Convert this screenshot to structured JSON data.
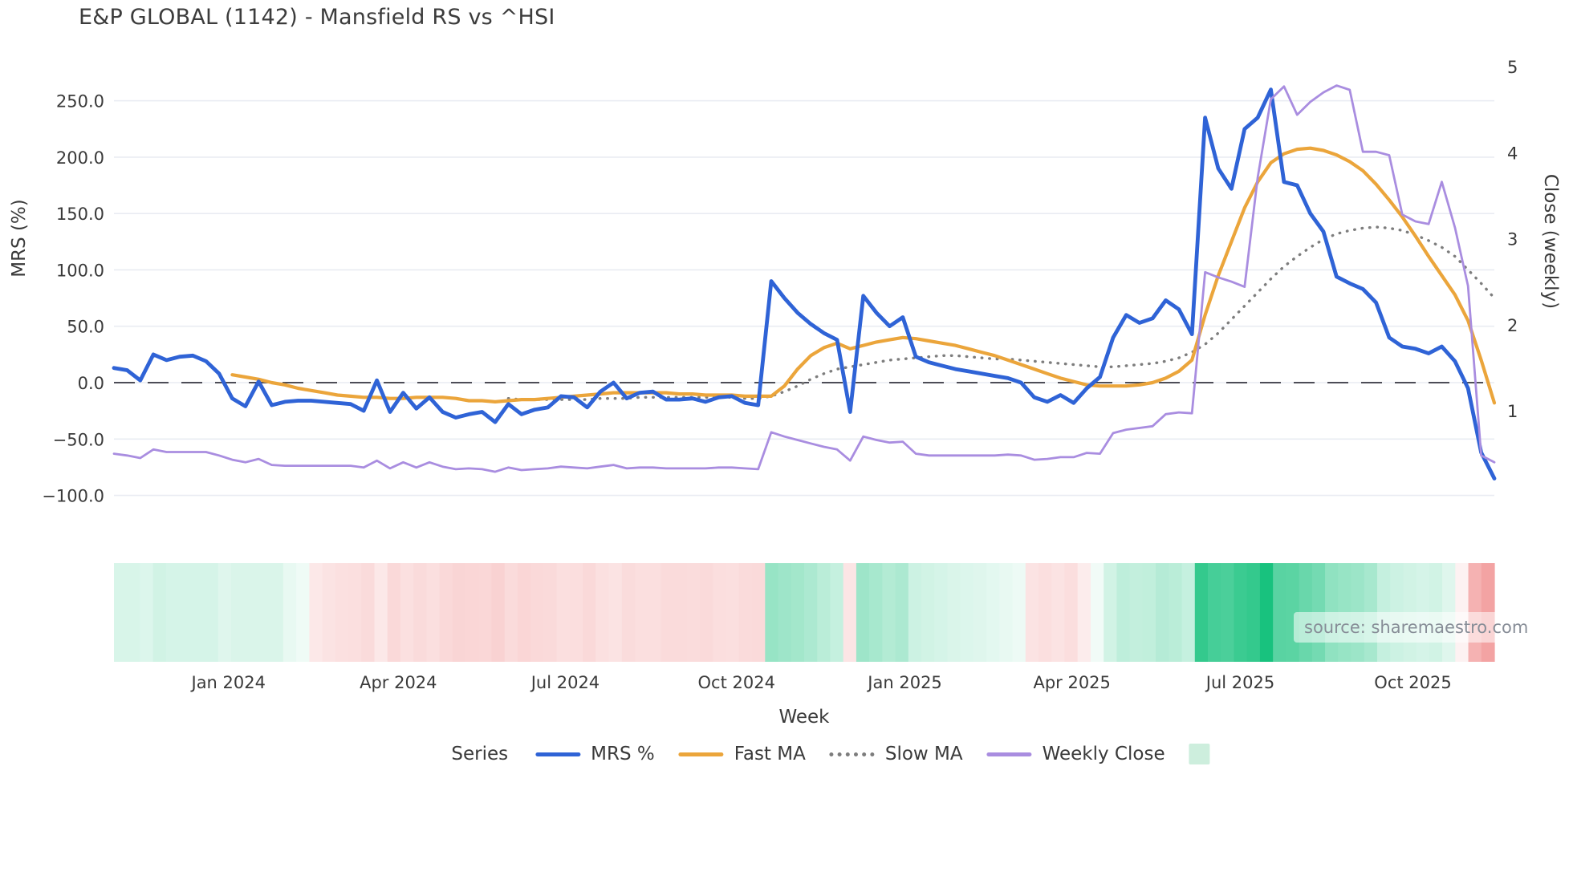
{
  "title": "E&P GLOBAL (1142) - Mansfield RS vs ^HSI",
  "watermark": "source: sharemaestro.com",
  "axes": {
    "left": {
      "label": "MRS (%)",
      "ticks": [
        {
          "v": 250,
          "label": "250.0"
        },
        {
          "v": 200,
          "label": "200.0"
        },
        {
          "v": 150,
          "label": "150.0"
        },
        {
          "v": 100,
          "label": "100.0"
        },
        {
          "v": 50,
          "label": "50.0"
        },
        {
          "v": 0,
          "label": "0.0"
        },
        {
          "v": -50,
          "label": "−50.0"
        },
        {
          "v": -100,
          "label": "−100.0"
        }
      ]
    },
    "right": {
      "label": "Close (weekly)",
      "ticks": [
        {
          "v": 5,
          "label": "5"
        },
        {
          "v": 4,
          "label": "4"
        },
        {
          "v": 3,
          "label": "3"
        },
        {
          "v": 2,
          "label": "2"
        },
        {
          "v": 1,
          "label": "1"
        }
      ]
    },
    "x": {
      "label": "Week",
      "ticks": [
        {
          "label": "Jan 2024",
          "f": 0.083
        },
        {
          "label": "Apr 2024",
          "f": 0.206
        },
        {
          "label": "Jul 2024",
          "f": 0.327
        },
        {
          "label": "Oct 2024",
          "f": 0.451
        },
        {
          "label": "Jan 2025",
          "f": 0.573
        },
        {
          "label": "Apr 2025",
          "f": 0.694
        },
        {
          "label": "Jul 2025",
          "f": 0.816
        },
        {
          "label": "Oct 2025",
          "f": 0.941
        }
      ]
    }
  },
  "legend": {
    "title": "Series",
    "items": [
      {
        "label": "MRS %",
        "style": "solid",
        "color": "#2f63d6"
      },
      {
        "label": "Fast MA",
        "style": "solid",
        "color": "#eba53b"
      },
      {
        "label": "Slow MA",
        "style": "dotted",
        "color": "#7d7d7d"
      },
      {
        "label": "Weekly Close",
        "style": "solid",
        "color": "#a98de0"
      },
      {
        "label": "",
        "style": "swatch",
        "color": "#cdeedd"
      }
    ]
  },
  "colors": {
    "grid": "#e9ecf2",
    "zero_line": "#4d4d57",
    "tick_text": "#3a3a3a",
    "heat_positive": "#18c27e",
    "heat_negative": "#ee7f7f"
  },
  "chart_data": {
    "type": "line",
    "title": "E&P GLOBAL (1142) - Mansfield RS vs ^HSI",
    "xlabel": "Week",
    "ylabel_left": "MRS (%)",
    "ylabel_right": "Close (weekly)",
    "x_range": [
      "Nov 2023",
      "Nov 2025"
    ],
    "n_points": 106,
    "ylim_left": [
      -119,
      290
    ],
    "ylim_right": [
      -0.24,
      5.12
    ],
    "grid": "horizontal-only",
    "legend_position": "bottom-center",
    "series": [
      {
        "name": "MRS %",
        "axis": "left",
        "style": "solid",
        "color": "#2f63d6",
        "values": [
          13,
          11,
          2,
          25,
          20,
          23,
          24,
          19,
          8,
          -14,
          -21,
          1,
          -20,
          -17,
          -16,
          -16,
          -17,
          -18,
          -19,
          -25,
          2,
          -26,
          -9,
          -23,
          -13,
          -26,
          -31,
          -28,
          -26,
          -35,
          -19,
          -28,
          -24,
          -22,
          -12,
          -13,
          -22,
          -8,
          0,
          -14,
          -9,
          -8,
          -15,
          -15,
          -14,
          -17,
          -13,
          -12,
          -18,
          -20,
          90,
          75,
          62,
          52,
          44,
          38,
          -26,
          77,
          62,
          50,
          58,
          23,
          18,
          15,
          12,
          10,
          8,
          6,
          4,
          0,
          -13,
          -17,
          -11,
          -18,
          -5,
          5,
          40,
          60,
          53,
          57,
          73,
          65,
          43,
          235,
          190,
          172,
          225,
          235,
          260,
          178,
          175,
          150,
          134,
          94,
          88,
          83,
          71,
          40,
          32,
          30,
          26,
          32,
          19,
          -5,
          -62,
          -85
        ]
      },
      {
        "name": "Fast MA",
        "axis": "left",
        "style": "solid",
        "color": "#eba53b",
        "values": [
          null,
          null,
          null,
          null,
          null,
          null,
          null,
          null,
          null,
          7,
          5,
          3,
          0,
          -2,
          -5,
          -7,
          -9,
          -11,
          -12,
          -13,
          -13,
          -14,
          -14,
          -13,
          -13,
          -13,
          -14,
          -16,
          -16,
          -17,
          -16,
          -15,
          -15,
          -14,
          -13,
          -12,
          -11,
          -10,
          -9,
          -9,
          -9,
          -9,
          -9,
          -10,
          -10,
          -11,
          -11,
          -11,
          -12,
          -12,
          -12,
          -3,
          12,
          24,
          31,
          35,
          30,
          33,
          36,
          38,
          40,
          39,
          37,
          35,
          33,
          30,
          27,
          24,
          20,
          16,
          12,
          8,
          4,
          1,
          -2,
          -3,
          -3,
          -3,
          -2,
          0,
          4,
          10,
          20,
          60,
          95,
          125,
          155,
          178,
          195,
          203,
          207,
          208,
          206,
          202,
          196,
          188,
          176,
          162,
          147,
          130,
          112,
          95,
          78,
          55,
          20,
          -18
        ]
      },
      {
        "name": "Slow MA",
        "axis": "left",
        "style": "dotted",
        "color": "#7d7d7d",
        "values": [
          null,
          null,
          null,
          null,
          null,
          null,
          null,
          null,
          null,
          null,
          null,
          null,
          null,
          null,
          null,
          null,
          null,
          null,
          null,
          null,
          null,
          null,
          null,
          null,
          null,
          null,
          null,
          null,
          null,
          null,
          -14,
          -15,
          -15,
          -15,
          -15,
          -15,
          -15,
          -14,
          -14,
          -14,
          -13,
          -13,
          -13,
          -13,
          -13,
          -13,
          -13,
          -13,
          -14,
          -14,
          -12,
          -8,
          -3,
          3,
          8,
          12,
          14,
          16,
          18,
          20,
          21,
          22,
          23,
          24,
          24,
          23,
          22,
          21,
          21,
          20,
          19,
          18,
          17,
          16,
          15,
          14,
          14,
          15,
          16,
          17,
          19,
          22,
          27,
          34,
          44,
          56,
          68,
          80,
          92,
          103,
          112,
          120,
          127,
          132,
          135,
          137,
          138,
          137,
          135,
          131,
          126,
          120,
          112,
          100,
          88,
          75
        ]
      },
      {
        "name": "Weekly Close",
        "axis": "right",
        "style": "solid",
        "color": "#a98de0",
        "values": [
          0.5,
          0.48,
          0.45,
          0.55,
          0.52,
          0.52,
          0.52,
          0.52,
          0.48,
          0.43,
          0.4,
          0.44,
          0.37,
          0.36,
          0.36,
          0.36,
          0.36,
          0.36,
          0.36,
          0.34,
          0.42,
          0.33,
          0.4,
          0.34,
          0.4,
          0.35,
          0.32,
          0.33,
          0.32,
          0.29,
          0.34,
          0.31,
          0.32,
          0.33,
          0.35,
          0.34,
          0.33,
          0.35,
          0.37,
          0.33,
          0.34,
          0.34,
          0.33,
          0.33,
          0.33,
          0.33,
          0.34,
          0.34,
          0.33,
          0.32,
          0.75,
          0.7,
          0.66,
          0.62,
          0.58,
          0.55,
          0.42,
          0.7,
          0.66,
          0.63,
          0.64,
          0.5,
          0.48,
          0.48,
          0.48,
          0.48,
          0.48,
          0.48,
          0.49,
          0.48,
          0.43,
          0.44,
          0.46,
          0.46,
          0.51,
          0.5,
          0.74,
          0.78,
          0.8,
          0.82,
          0.96,
          0.98,
          0.97,
          2.61,
          2.55,
          2.5,
          2.44,
          3.71,
          4.62,
          4.77,
          4.44,
          4.59,
          4.7,
          4.78,
          4.73,
          4.01,
          4.01,
          3.97,
          3.28,
          3.2,
          3.17,
          3.66,
          3.13,
          2.45,
          0.48,
          0.4
        ]
      }
    ],
    "heatmap": {
      "description": "weekly strength heat strip, -1 red .. +1 green",
      "values": [
        0.17,
        0.17,
        0.15,
        0.2,
        0.18,
        0.18,
        0.18,
        0.18,
        0.14,
        0.16,
        0.16,
        0.16,
        0.16,
        0.1,
        0.07,
        -0.18,
        -0.22,
        -0.24,
        -0.25,
        -0.28,
        -0.18,
        -0.3,
        -0.24,
        -0.28,
        -0.25,
        -0.3,
        -0.33,
        -0.32,
        -0.31,
        -0.35,
        -0.28,
        -0.32,
        -0.3,
        -0.29,
        -0.25,
        -0.26,
        -0.3,
        -0.24,
        -0.22,
        -0.27,
        -0.25,
        -0.25,
        -0.28,
        -0.28,
        -0.27,
        -0.29,
        -0.26,
        -0.25,
        -0.28,
        -0.29,
        0.45,
        0.42,
        0.4,
        0.36,
        0.3,
        0.25,
        -0.2,
        0.42,
        0.38,
        0.33,
        0.36,
        0.22,
        0.2,
        0.18,
        0.16,
        0.15,
        0.14,
        0.12,
        0.1,
        0.08,
        -0.22,
        -0.25,
        -0.22,
        -0.26,
        -0.15,
        0.06,
        0.2,
        0.28,
        0.26,
        0.27,
        0.32,
        0.3,
        0.25,
        0.88,
        0.8,
        0.78,
        0.85,
        0.88,
        1.0,
        0.72,
        0.71,
        0.65,
        0.6,
        0.48,
        0.45,
        0.43,
        0.38,
        0.25,
        0.22,
        0.2,
        0.18,
        0.2,
        0.14,
        -0.1,
        -0.6,
        -0.72
      ]
    }
  }
}
